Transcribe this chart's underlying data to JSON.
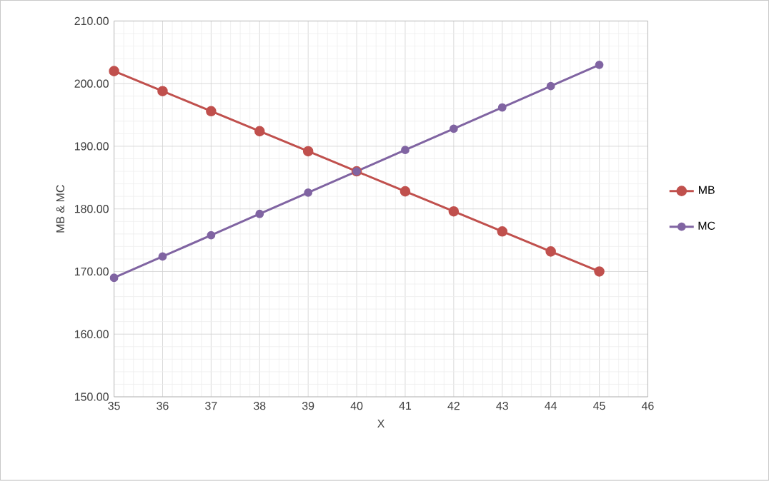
{
  "chart_data": {
    "type": "line",
    "xlabel": "X",
    "ylabel": "MB & MC",
    "x": [
      35,
      36,
      37,
      38,
      39,
      40,
      41,
      42,
      43,
      44,
      45
    ],
    "series": [
      {
        "name": "MB",
        "color": "#c0504d",
        "values": [
          202,
          198.8,
          195.6,
          192.4,
          189.2,
          186,
          182.8,
          179.6,
          176.4,
          173.2,
          170
        ]
      },
      {
        "name": "MC",
        "color": "#8064a2",
        "values": [
          169,
          172.4,
          175.8,
          179.2,
          182.6,
          186,
          189.4,
          192.8,
          196.2,
          199.6,
          203
        ]
      }
    ],
    "xlim": [
      35,
      46
    ],
    "xticks": [
      35,
      36,
      37,
      38,
      39,
      40,
      41,
      42,
      43,
      44,
      45,
      46
    ],
    "ylim": [
      150,
      210
    ],
    "yticks": [
      {
        "value": 150,
        "label": "150.00"
      },
      {
        "value": 160,
        "label": "160.00"
      },
      {
        "value": 170,
        "label": "170.00"
      },
      {
        "value": 180,
        "label": "180.00"
      },
      {
        "value": 190,
        "label": "190.00"
      },
      {
        "value": 200,
        "label": "200.00"
      },
      {
        "value": 210,
        "label": "210.00"
      }
    ],
    "grid": true,
    "legend": "right",
    "marker": "circle",
    "line_style": "solid"
  }
}
